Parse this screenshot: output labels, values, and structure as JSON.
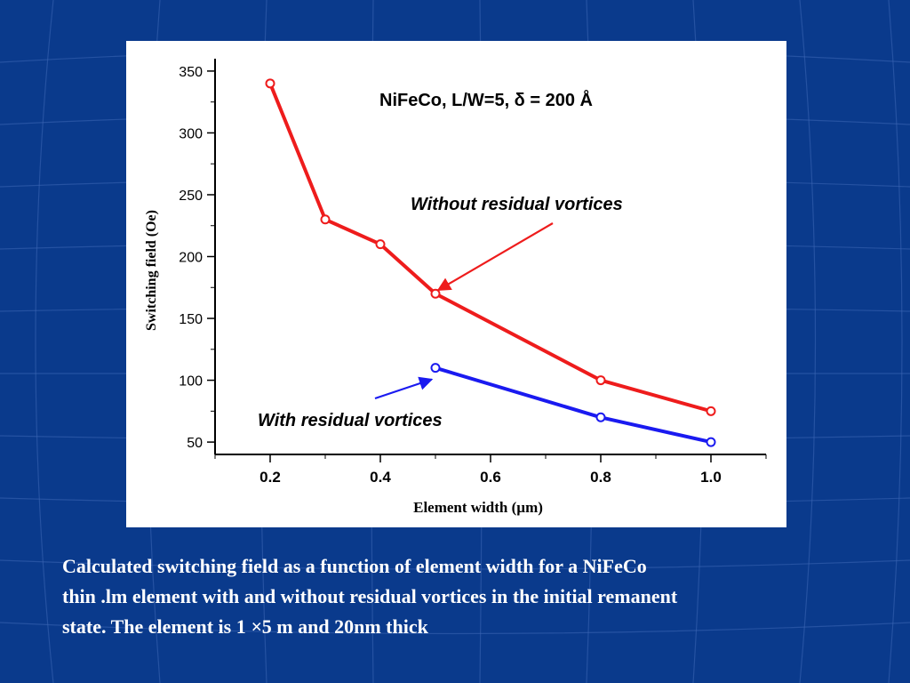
{
  "colors": {
    "background": "#0a3a8c",
    "panel": "#ffffff",
    "series_without": "#ee1c1c",
    "series_with": "#1a1af0",
    "axis": "#000000",
    "caption_text": "#ffffff"
  },
  "chart_data": {
    "type": "line",
    "title": "NiFeCo, L/W=5, δ = 200 Å",
    "xlabel": "Element width (µm)",
    "ylabel": "Switching field (Oe)",
    "xlim": [
      0.1,
      1.1
    ],
    "ylim": [
      40,
      360
    ],
    "xticks": [
      0.2,
      0.4,
      0.6,
      0.8,
      1.0
    ],
    "xtick_labels": [
      "0.2",
      "0.4",
      "0.6",
      "0.8",
      "1.0"
    ],
    "yticks": [
      50,
      100,
      150,
      200,
      250,
      300,
      350
    ],
    "ytick_labels": [
      "50",
      "100",
      "150",
      "200",
      "250",
      "300",
      "350"
    ],
    "grid": false,
    "legend": "none",
    "series": [
      {
        "name": "Without residual vortices",
        "color": "#ee1c1c",
        "x": [
          0.2,
          0.3,
          0.4,
          0.5,
          0.8,
          1.0
        ],
        "y": [
          340,
          230,
          210,
          170,
          100,
          75
        ]
      },
      {
        "name": "With residual vortices",
        "color": "#1a1af0",
        "x": [
          0.5,
          0.8,
          1.0
        ],
        "y": [
          110,
          70,
          50
        ]
      }
    ],
    "annotations": [
      {
        "text": "Without residual vortices",
        "color": "#000000",
        "arrow_color": "#ee1c1c",
        "points_to": {
          "x": 0.5,
          "y": 170
        }
      },
      {
        "text": "With residual vortices",
        "color": "#000000",
        "arrow_color": "#1a1af0",
        "points_to": {
          "x": 0.49,
          "y": 105
        }
      }
    ]
  },
  "caption": {
    "line1": "Calculated switching field as a function of element width for a NiFeCo",
    "line2": "thin .lm element with and without residual vortices in the initial remanent",
    "line3_before": "state. The element is 1",
    "line3_symbol": "×",
    "line3_after": "5 m and 20nm thick"
  }
}
